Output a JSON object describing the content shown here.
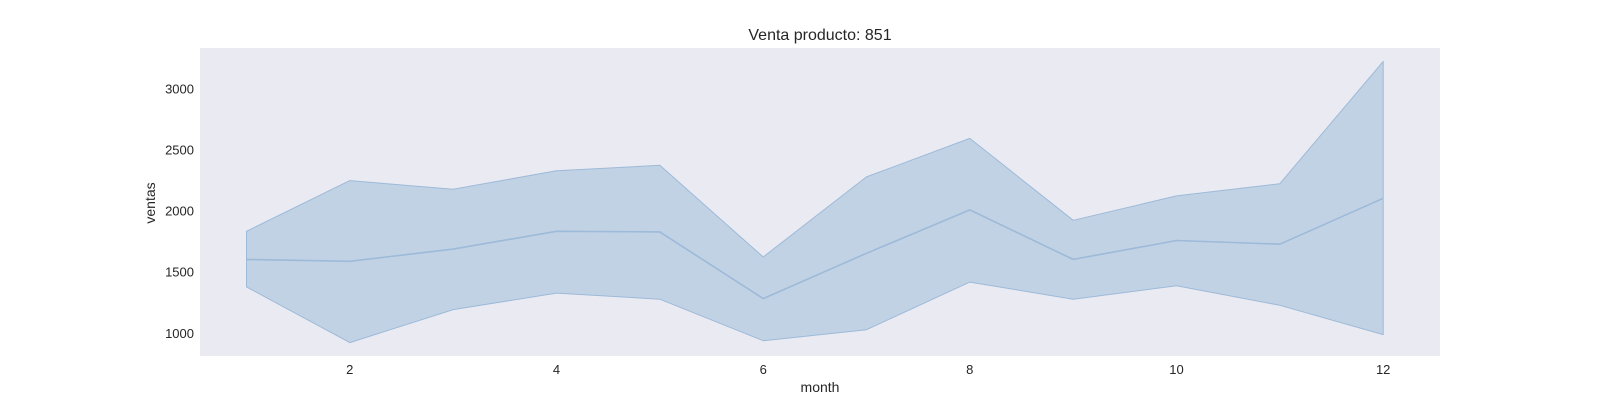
{
  "chart_data": {
    "type": "line",
    "title": "Venta producto: 851",
    "xlabel": "month",
    "ylabel": "ventas",
    "x": [
      1,
      2,
      3,
      4,
      5,
      6,
      7,
      8,
      9,
      10,
      11,
      12
    ],
    "series": [
      {
        "values": [
          1600,
          1585,
          1685,
          1830,
          1825,
          1280,
          1650,
          2005,
          1600,
          1755,
          1725,
          2100
        ],
        "band_upper": [
          1830,
          2245,
          2175,
          2325,
          2370,
          1620,
          2275,
          2590,
          1920,
          2120,
          2220,
          3220
        ],
        "band_lower": [
          1375,
          920,
          1190,
          1325,
          1275,
          935,
          1025,
          1415,
          1275,
          1385,
          1225,
          985
        ]
      }
    ],
    "xlim": [
      0.55,
      12.55
    ],
    "ylim": [
      810,
      3330
    ],
    "xticks": [
      "2",
      "4",
      "6",
      "8",
      "10",
      "12"
    ],
    "yticks": [
      "1000",
      "1500",
      "2000",
      "2500",
      "3000"
    ],
    "grid": false,
    "colors": {
      "plot_background": "#eaeaf2",
      "line": "#9dbad8",
      "band_fill": "#b3c9e0",
      "text": "#262626"
    }
  }
}
